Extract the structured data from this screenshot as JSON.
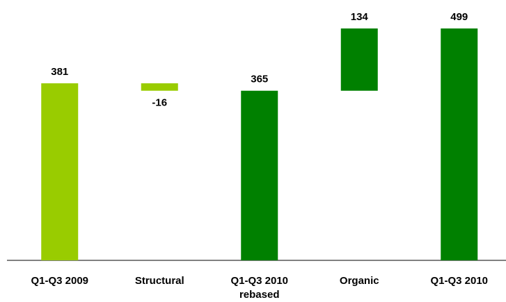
{
  "chart_data": {
    "type": "waterfall",
    "categories": [
      "Q1-Q3 2009",
      "Structural",
      "Q1-Q3 2010\nrebased",
      "Organic",
      "Q1-Q3 2010"
    ],
    "values": [
      381,
      -16,
      365,
      134,
      499
    ],
    "measure": [
      "absolute",
      "relative",
      "total",
      "relative",
      "total"
    ],
    "colors": [
      "#99cc00",
      "#99cc00",
      "#008000",
      "#008000",
      "#008000"
    ]
  }
}
